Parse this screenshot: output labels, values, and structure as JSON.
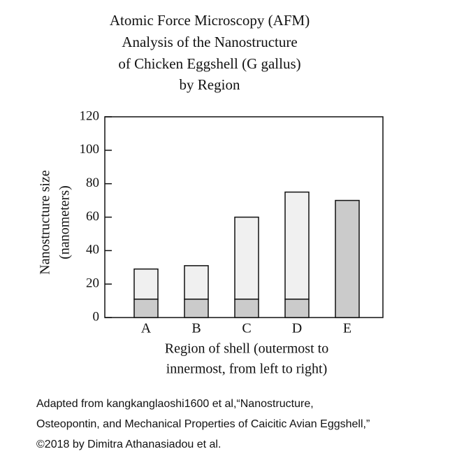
{
  "chart_data": {
    "type": "stacked-bar",
    "title": [
      "Atomic Force Microscopy (AFM)",
      "Analysis of the Nanostructure",
      "of Chicken Eggshell (G gallus)",
      "by Region"
    ],
    "y_label": [
      "Nanostructure size",
      "(nanometers)"
    ],
    "x_label": [
      "Region of shell (outermost to",
      "innermost, from left to right)"
    ],
    "categories": [
      "A",
      "B",
      "C",
      "D",
      "E"
    ],
    "series": [
      {
        "color": "#cbcbcb",
        "values": [
          11,
          11,
          11,
          11,
          70
        ]
      },
      {
        "color": "#f0f0f0",
        "values": [
          18,
          20,
          49,
          64,
          null
        ]
      }
    ],
    "ylim": [
      0,
      120
    ],
    "yticks": [
      0,
      20,
      40,
      60,
      80,
      100,
      120
    ],
    "caption": [
      "Adapted from kangkanglaoshi1600 et al,“Nanostructure,",
      "Osteopontin, and Mechanical Properties of Caicitic Avian Eggshell,”",
      "©2018 by Dimitra Athanasiadou et al."
    ]
  }
}
